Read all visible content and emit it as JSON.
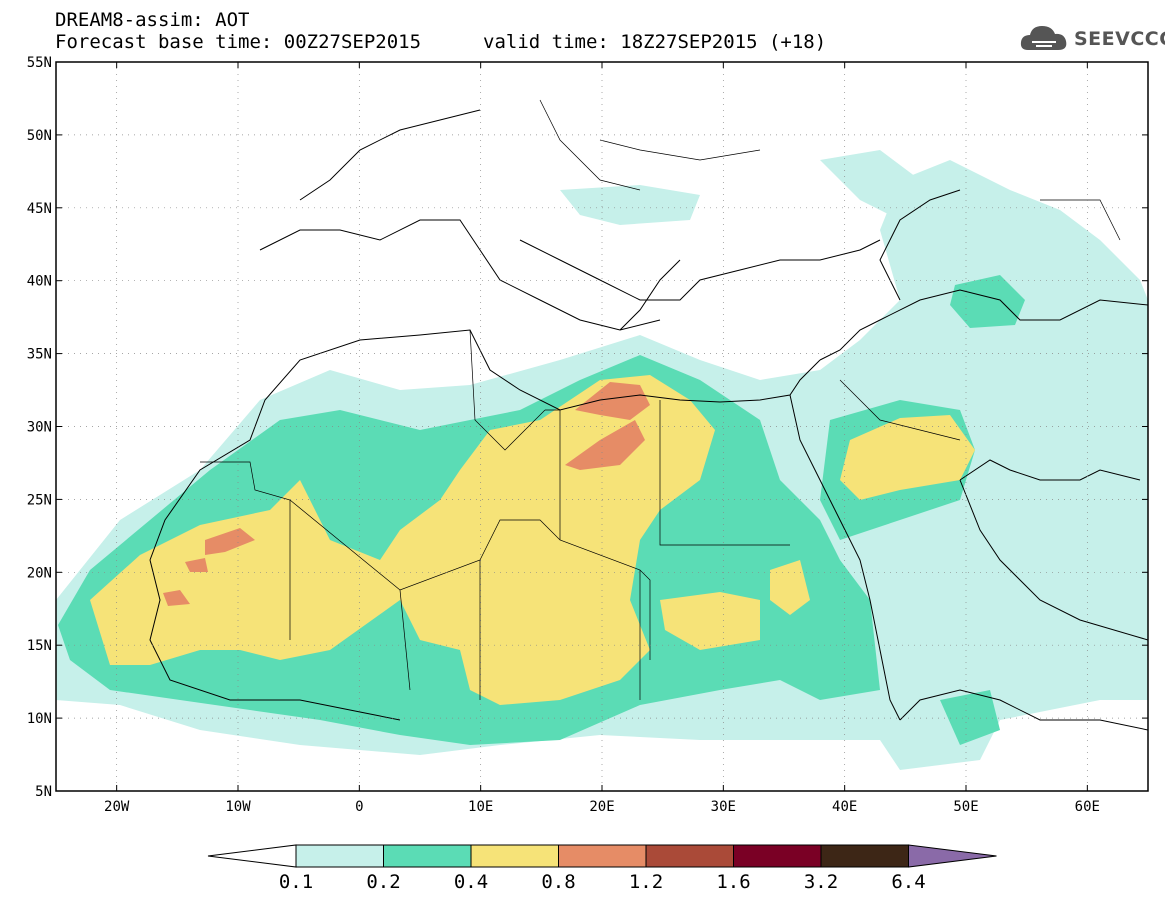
{
  "header": {
    "line1": "DREAM8-assim: AOT",
    "line2": "Forecast base time: 00Z27SEP2015",
    "valid": "valid time: 18Z27SEP2015 (+18)",
    "logo_text": "SEEVCCC",
    "logo_icon": "cloud-icon"
  },
  "map": {
    "lat_labels": [
      "55N",
      "50N",
      "45N",
      "40N",
      "35N",
      "30N",
      "25N",
      "20N",
      "15N",
      "10N",
      "5N"
    ],
    "lon_labels": [
      "20W",
      "10W",
      "0",
      "10E",
      "20E",
      "30E",
      "40E",
      "50E",
      "60E"
    ],
    "extent": {
      "lon": [
        -25,
        65
      ],
      "lat": [
        5,
        55
      ]
    }
  },
  "colorbar": {
    "labels": [
      "0.1",
      "0.2",
      "0.4",
      "0.8",
      "1.2",
      "1.6",
      "3.2",
      "6.4"
    ],
    "colors": [
      "#ffffff",
      "#c6f0ea",
      "#5bdcb5",
      "#f6e378",
      "#e68c66",
      "#aa4a38",
      "#7a0025",
      "#3d2616",
      "#8a6aa8"
    ]
  },
  "fields": {
    "c1": "#c6f0ea",
    "c2": "#5bdcb5",
    "c3": "#f6e378",
    "c4": "#e68c66"
  }
}
